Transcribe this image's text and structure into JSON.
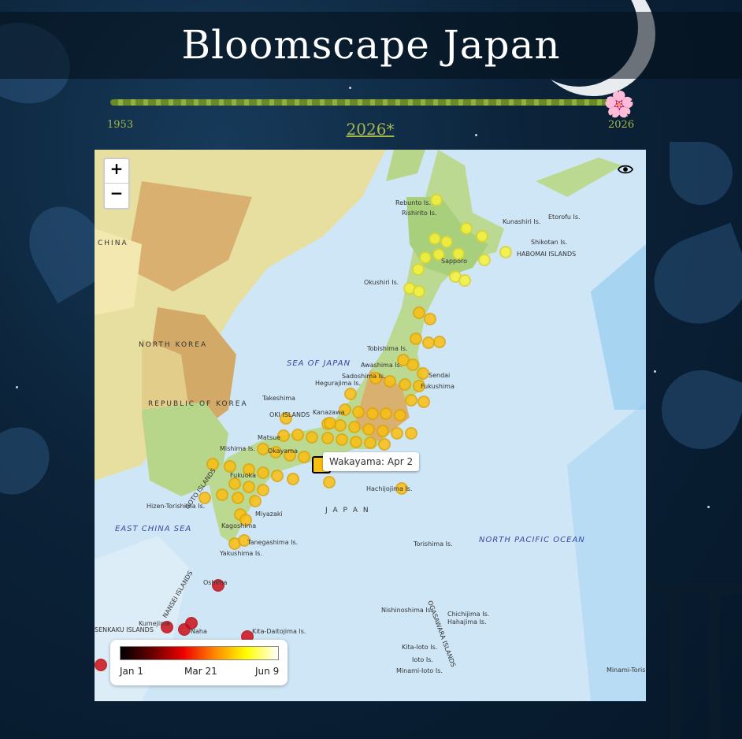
{
  "app": {
    "title": "Bloomscape Japan"
  },
  "timeline": {
    "start_year": "1953",
    "end_year": "2026",
    "current_year": "2026*",
    "progress": 1.0,
    "thumb_icon": "cherry-blossom-icon"
  },
  "map": {
    "zoom_in_label": "+",
    "zoom_out_label": "−",
    "toggle_icon": "eye-icon",
    "tooltip": "Wakayama: Apr 2",
    "country_labels": {
      "china": "CHINA",
      "north_korea": "NORTH KOREA",
      "south_korea": "REPUBLIC OF KOREA",
      "japan": "J A P A N"
    },
    "sea_labels": {
      "sea_of_japan": "SEA OF JAPAN",
      "east_china_sea": "EAST CHINA SEA",
      "north_pacific": "NORTH PACIFIC OCEAN"
    },
    "place_labels": {
      "rebunto": "Rebunto Is.",
      "rishirito": "Rishirito Is.",
      "kunashiri": "Kunashiri Is.",
      "etorofu": "Etorofu Is.",
      "shikotan": "Shikotan Is.",
      "habomai": "HABOMAI ISLANDS",
      "okushiri": "Okushiri Is.",
      "sapporo": "Sapporo",
      "tobishima": "Tobishima Is.",
      "awashima": "Awashima Is.",
      "sadoshima": "Sadoshima Is.",
      "hegurajima": "Hegurajima Is.",
      "sendai": "Sendai",
      "fukushima": "Fukushima",
      "takeshima": "Takeshima",
      "oki": "OKI ISLANDS",
      "kanazawa": "Kanazawa",
      "mishima": "Mishima Is.",
      "matsue": "Matsue",
      "okayama": "Okayama",
      "fukuoka": "Fukuoka",
      "goto": "GOTO ISLANDS",
      "hizen": "Hizen-Torishima Is.",
      "miyazaki": "Miyazaki",
      "kagoshima": "Kagoshima",
      "tanegashima": "Tanegashima Is.",
      "yakushima": "Yakushima Is.",
      "hachijojima": "Hachijojima Is.",
      "torishima": "Torishima Is.",
      "nansei": "NANSEI ISLANDS",
      "nishinoshima": "Nishinoshima Is.",
      "chichijima": "Chichijima Is.",
      "hahajima": "Hahajima Is.",
      "ogasawara": "OGASAWARA ISLANDS",
      "kita_ioto": "Kita-Ioto Is.",
      "ioto": "Ioto Is.",
      "minami_ioto": "Minami-Ioto Is.",
      "minami_torishima": "Minami-Torishima",
      "senkaku": "SENKAKU ISLANDS",
      "kumejima": "Kumejima",
      "kita_daito": "Kita-Daitojima Is.",
      "naha": "Naha",
      "oshima": "Oshima"
    }
  },
  "legend": {
    "start_label": "Jan 1",
    "mid_label": "Mar 21",
    "end_label": "Jun 9"
  },
  "colors": {
    "accent": "#a6b84a",
    "background": "#0b2238",
    "early_bloom": "#d0101a",
    "mid_bloom": "#fbbf10",
    "late_bloom": "#f7f238"
  }
}
